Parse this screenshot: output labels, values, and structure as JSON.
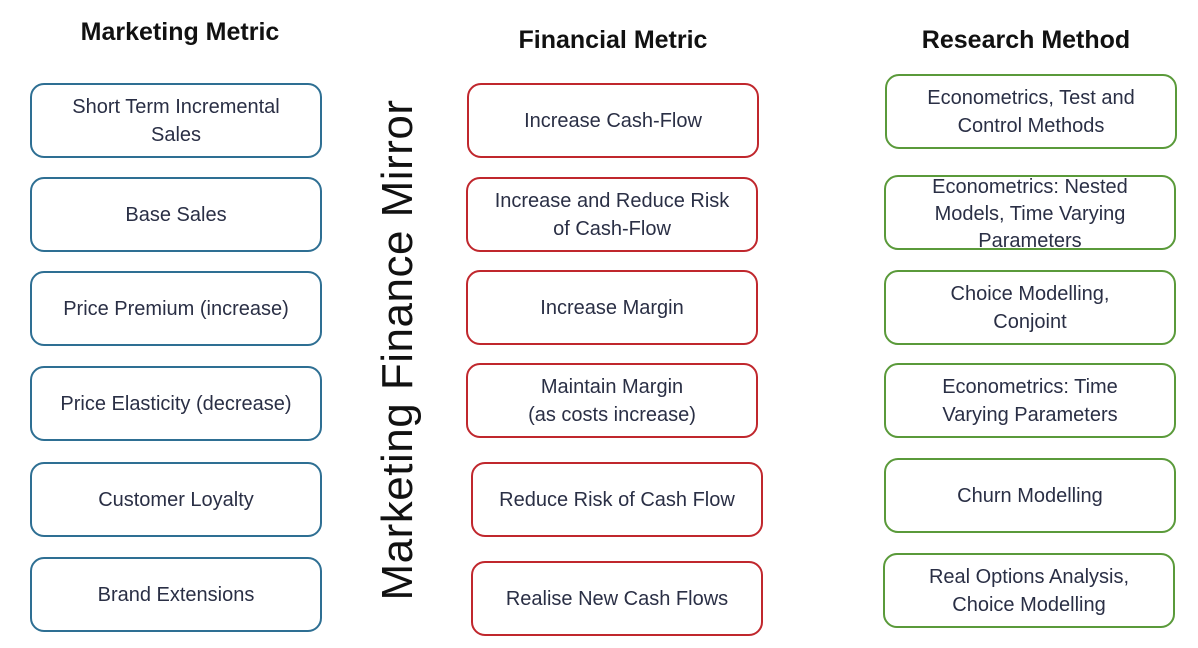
{
  "headers": {
    "marketing": "Marketing Metric",
    "financial": "Financial Metric",
    "research": "Research Method"
  },
  "mirror_label": "Marketing Finance Mirror",
  "colors": {
    "marketing_border": "#2e6f93",
    "financial_border": "#c0272d",
    "research_border": "#5a9a3a",
    "text": "#2a2f45"
  },
  "marketing_metrics": [
    "Short Term Incremental\nSales",
    "Base Sales",
    "Price Premium (increase)",
    "Price Elasticity (decrease)",
    "Customer Loyalty",
    "Brand Extensions"
  ],
  "financial_metrics": [
    "Increase Cash-Flow",
    "Increase and  Reduce Risk\nof Cash-Flow",
    "Increase Margin",
    "Maintain Margin\n(as costs increase)",
    "Reduce Risk of Cash Flow",
    "Realise New Cash Flows"
  ],
  "research_methods": [
    "Econometrics, Test and\nControl Methods",
    "Econometrics: Nested\nModels, Time Varying\nParameters",
    "Choice Modelling,\nConjoint",
    "Econometrics: Time\nVarying Parameters",
    "Churn Modelling",
    "Real Options Analysis,\nChoice Modelling"
  ]
}
